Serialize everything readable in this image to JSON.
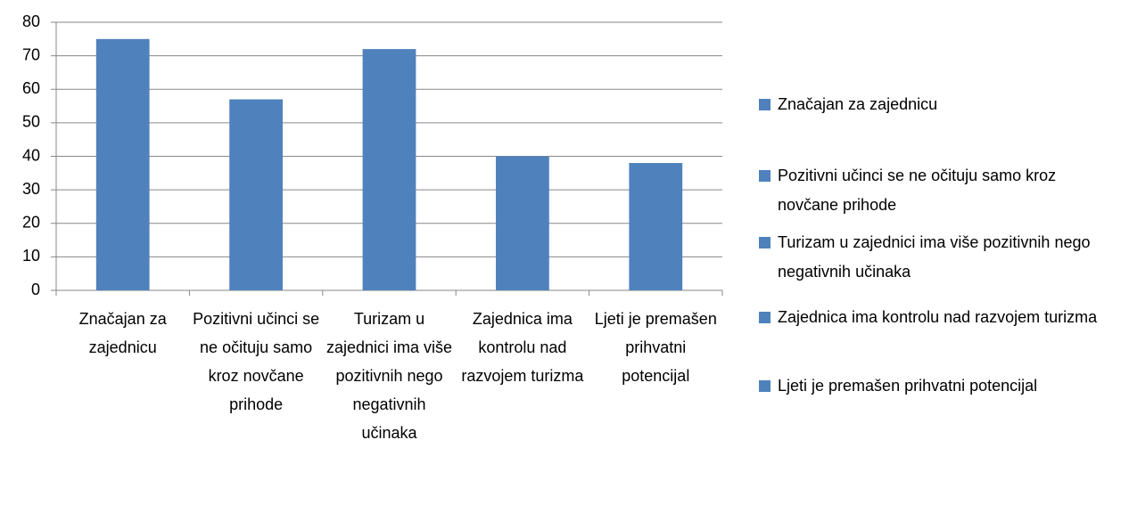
{
  "chart_data": {
    "type": "bar",
    "categories": [
      "Značajan za zajednicu",
      "Pozitivni učinci se ne očituju samo kroz novčane prihode",
      "Turizam u zajednici ima više pozitivnih nego negativnih učinaka",
      "Zajednica ima kontrolu nad razvojem turizma",
      "Ljeti je premašen prihvatni potencijal"
    ],
    "values": [
      75,
      57,
      72,
      40,
      38
    ],
    "color": "#4f81bd",
    "ylim": [
      0,
      80
    ],
    "yticks": [
      0,
      10,
      20,
      30,
      40,
      50,
      60,
      70,
      80
    ],
    "grid": true,
    "legend": "right"
  }
}
